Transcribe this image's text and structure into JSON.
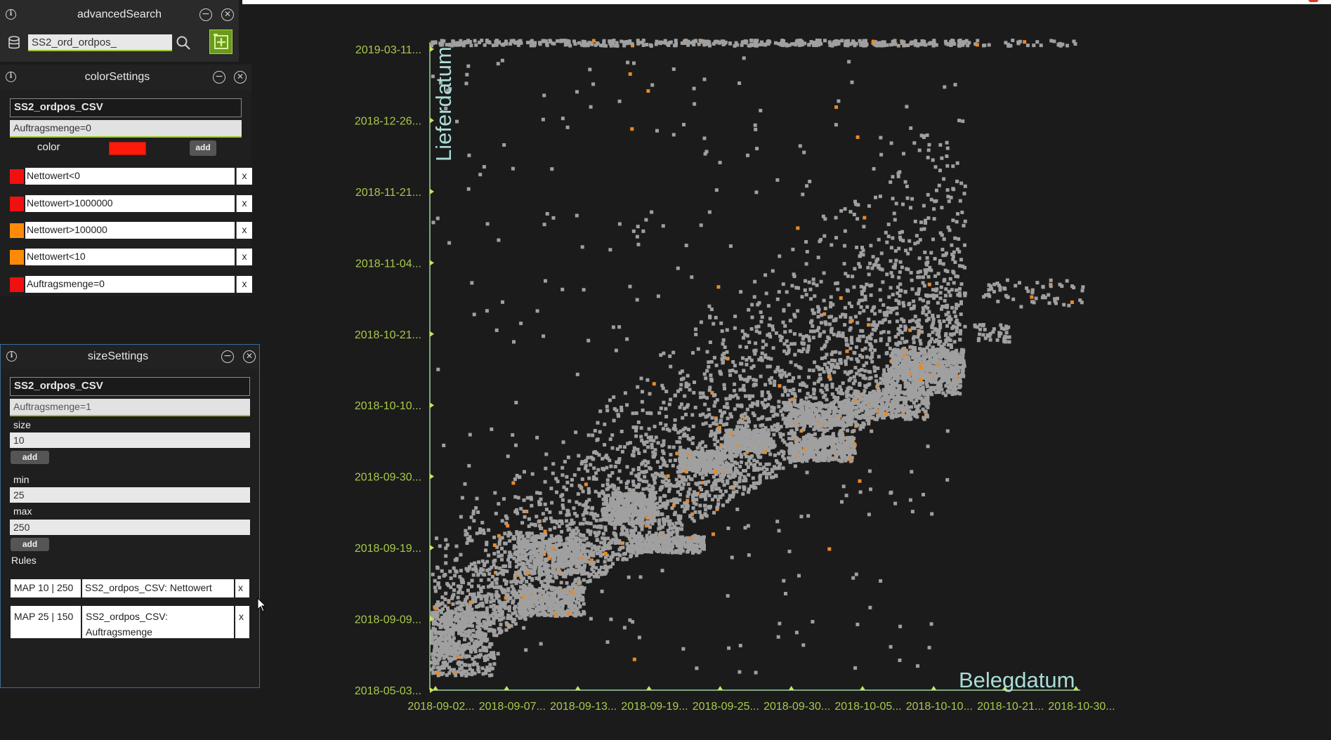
{
  "advancedSearch": {
    "title": "advancedSearch",
    "search_value": "SS2_ord_ordpos_",
    "icons": [
      "info-icon",
      "minimize-icon",
      "close-icon",
      "database-icon",
      "search-icon",
      "add-icon"
    ]
  },
  "colorSettings": {
    "title": "colorSettings",
    "dataset": "SS2_ordpos_CSV",
    "expression": "Auftragsmenge=0",
    "color_label": "color",
    "picked_color": "#ff1a0a",
    "add_label": "add",
    "rules": [
      {
        "text": "Nettowert<0",
        "color": "#f01010",
        "remove": "x"
      },
      {
        "text": "Nettowert>1000000",
        "color": "#f01010",
        "remove": "x"
      },
      {
        "text": "Nettowert>100000",
        "color": "#ff8a0a",
        "remove": "x"
      },
      {
        "text": "Nettowert<10",
        "color": "#ff8a0a",
        "remove": "x"
      },
      {
        "text": "Auftragsmenge=0",
        "color": "#f01010",
        "remove": "x"
      }
    ]
  },
  "sizeSettings": {
    "title": "sizeSettings",
    "dataset": "SS2_ordpos_CSV",
    "expression": "Auftragsmenge=1",
    "size_label": "size",
    "size_value": "10",
    "add_label_1": "add",
    "min_label": "min",
    "min_value": "25",
    "max_label": "max",
    "max_value": "250",
    "add_label_2": "add",
    "rules_label": "Rules",
    "rules": [
      {
        "map": "MAP 10 | 250",
        "target": "SS2_ordpos_CSV: Nettowert",
        "remove": "x"
      },
      {
        "map": "MAP 25 | 150",
        "target": "SS2_ordpos_CSV: Auftragsmenge",
        "remove": "x"
      }
    ]
  },
  "chart_data": {
    "type": "scatter",
    "title": "",
    "xlabel": "Belegdatum",
    "ylabel": "Lieferdatum",
    "x_ticks": [
      "2018-09-02...",
      "2018-09-07...",
      "2018-09-13...",
      "2018-09-19...",
      "2018-09-25...",
      "2018-09-30...",
      "2018-10-05...",
      "2018-10-10...",
      "2018-10-21...",
      "2018-10-30..."
    ],
    "y_ticks": [
      "2018-05-03...",
      "2018-09-09...",
      "2018-09-19...",
      "2018-09-30...",
      "2018-10-10...",
      "2018-10-21...",
      "2018-11-04...",
      "2018-11-21...",
      "2018-12-26...",
      "2019-03-11..."
    ],
    "grid": false,
    "colors": {
      "axis": "#9fd3a0",
      "tick_label": "#a8c94b",
      "axis_title": "#aaddd6",
      "point": "#a0a0a0",
      "highlight": "#e8892a"
    },
    "series": [
      {
        "note": "",
        "points": []
      }
    ]
  }
}
